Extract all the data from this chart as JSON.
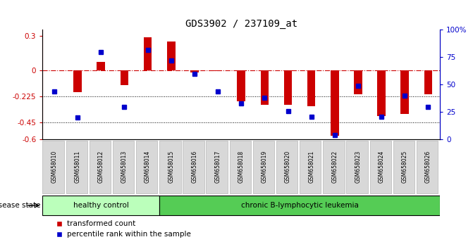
{
  "title": "GDS3902 / 237109_at",
  "samples": [
    "GSM658010",
    "GSM658011",
    "GSM658012",
    "GSM658013",
    "GSM658014",
    "GSM658015",
    "GSM658016",
    "GSM658017",
    "GSM658018",
    "GSM658019",
    "GSM658020",
    "GSM658021",
    "GSM658022",
    "GSM658023",
    "GSM658024",
    "GSM658025",
    "GSM658026"
  ],
  "bar_values": [
    0.0,
    -0.19,
    0.07,
    -0.13,
    0.285,
    0.25,
    -0.02,
    -0.005,
    -0.27,
    -0.3,
    -0.3,
    -0.31,
    -0.57,
    -0.21,
    -0.4,
    -0.38,
    -0.21
  ],
  "dot_values": [
    44,
    20,
    80,
    30,
    82,
    72,
    60,
    44,
    33,
    38,
    26,
    21,
    4,
    49,
    21,
    40,
    30
  ],
  "ylim_left": [
    -0.6,
    0.35
  ],
  "ylim_right": [
    0,
    100
  ],
  "yticks_left": [
    -0.6,
    -0.45,
    -0.225,
    0.0,
    0.3
  ],
  "ytick_labels_left": [
    "-0.6",
    "-0.45",
    "-0.225",
    "0",
    "0.3"
  ],
  "yticks_right": [
    0,
    25,
    50,
    75,
    100
  ],
  "ytick_labels_right": [
    "0",
    "25",
    "50",
    "75",
    "100%"
  ],
  "hline_y": 0.0,
  "dotted_lines": [
    -0.225,
    -0.45
  ],
  "bar_color": "#cc0000",
  "dot_color": "#0000cc",
  "healthy_label": "healthy control",
  "leukemia_label": "chronic B-lymphocytic leukemia",
  "disease_state_label": "disease state",
  "healthy_count": 5,
  "total_count": 17,
  "legend_bar": "transformed count",
  "legend_dot": "percentile rank within the sample",
  "healthy_color": "#bbffbb",
  "leukemia_color": "#55cc55",
  "xticklabel_bg": "#d8d8d8"
}
